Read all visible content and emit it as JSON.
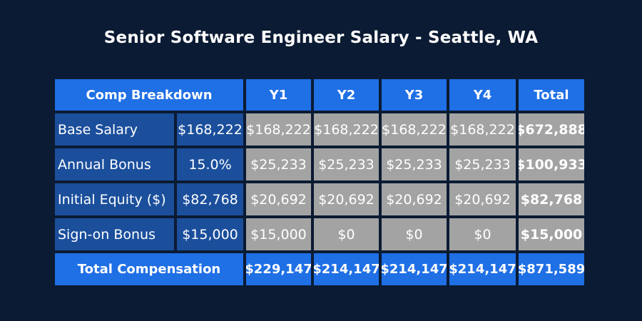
{
  "title": "Senior Software Engineer Salary - Seattle, WA",
  "chart_data": {
    "type": "table",
    "title": "Senior Software Engineer Salary - Seattle, WA",
    "columns": [
      "Comp Breakdown",
      "Y1",
      "Y2",
      "Y3",
      "Y4",
      "Total"
    ],
    "rows": [
      {
        "label": "Base Salary",
        "input": "$168,222",
        "values": [
          "$168,222",
          "$168,222",
          "$168,222",
          "$168,222"
        ],
        "total": "$672,888"
      },
      {
        "label": "Annual Bonus",
        "input": "15.0%",
        "values": [
          "$25,233",
          "$25,233",
          "$25,233",
          "$25,233"
        ],
        "total": "$100,933"
      },
      {
        "label": "Initial Equity ($)",
        "input": "$82,768",
        "values": [
          "$20,692",
          "$20,692",
          "$20,692",
          "$20,692"
        ],
        "total": "$82,768"
      },
      {
        "label": "Sign-on Bonus",
        "input": "$15,000",
        "values": [
          "$15,000",
          "$0",
          "$0",
          "$0"
        ],
        "total": "$15,000"
      }
    ],
    "footer": {
      "label": "Total Compensation",
      "values": [
        "$229,147",
        "$214,147",
        "$214,147",
        "$214,147"
      ],
      "total": "$871,589"
    }
  },
  "colors": {
    "background": "#0b1b33",
    "header_blue": "#1f6fe5",
    "label_blue": "#1b4f9c",
    "value_gray": "#a3a3a3",
    "text": "#ffffff"
  }
}
